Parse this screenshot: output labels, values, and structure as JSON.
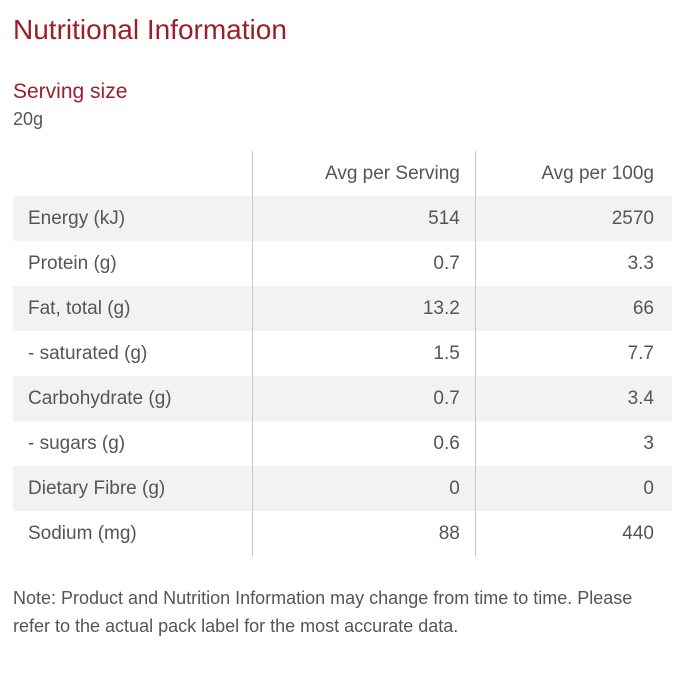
{
  "title": "Nutritional Information",
  "serving": {
    "label": "Serving size",
    "value": "20g"
  },
  "table": {
    "headers": [
      "",
      "Avg per Serving",
      "Avg per 100g"
    ],
    "rows": [
      {
        "nutrient": "Energy (kJ)",
        "per_serving": "514",
        "per_100g": "2570"
      },
      {
        "nutrient": "Protein (g)",
        "per_serving": "0.7",
        "per_100g": "3.3"
      },
      {
        "nutrient": "Fat, total (g)",
        "per_serving": "13.2",
        "per_100g": "66"
      },
      {
        "nutrient": "- saturated (g)",
        "per_serving": "1.5",
        "per_100g": "7.7"
      },
      {
        "nutrient": "Carbohydrate (g)",
        "per_serving": "0.7",
        "per_100g": "3.4"
      },
      {
        "nutrient": "- sugars (g)",
        "per_serving": "0.6",
        "per_100g": "3"
      },
      {
        "nutrient": "Dietary Fibre (g)",
        "per_serving": "0",
        "per_100g": "0"
      },
      {
        "nutrient": "Sodium (mg)",
        "per_serving": "88",
        "per_100g": "440"
      }
    ]
  },
  "note": "Note: Product and Nutrition Information may change from time to time. Please refer to the actual pack label for the most accurate data.",
  "colors": {
    "accent": "#9a1f2e",
    "text": "#555555",
    "row_stripe": "#f2f2f2",
    "divider": "#c8c8c8"
  }
}
